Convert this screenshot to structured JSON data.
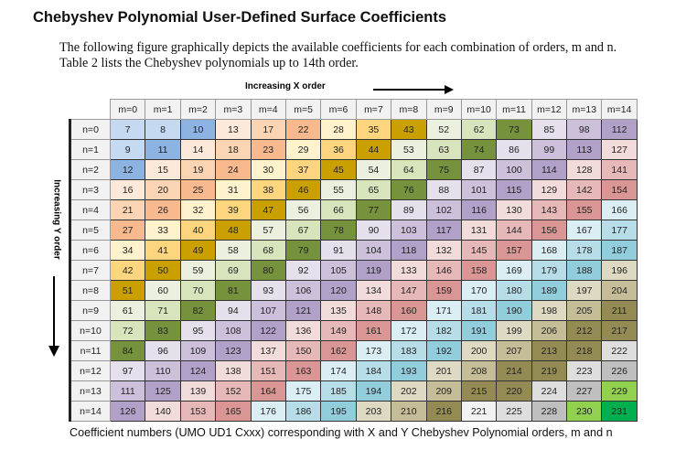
{
  "title": "Chebyshev Polynomial User-Defined Surface Coefficients",
  "paragraph": [
    "The following figure graphically depicts the available coefficients for each combination of orders, m and n.",
    "Table 2 lists the Chebyshev polynomials up to 14th order."
  ],
  "x_axis_label": "Increasing X order",
  "y_axis_label": "Increasing Y order",
  "columns": [
    "m=0",
    "m=1",
    "m=2",
    "m=3",
    "m=4",
    "m=5",
    "m=6",
    "m=7",
    "m=8",
    "m=9",
    "m=10",
    "m=11",
    "m=12",
    "m=13",
    "m=14"
  ],
  "rows": [
    {
      "label": "n=0",
      "values": [
        7,
        8,
        10,
        13,
        17,
        22,
        28,
        35,
        43,
        52,
        62,
        73,
        85,
        98,
        112
      ]
    },
    {
      "label": "n=1",
      "values": [
        9,
        11,
        14,
        18,
        23,
        29,
        36,
        44,
        53,
        63,
        74,
        86,
        99,
        113,
        127
      ]
    },
    {
      "label": "n=2",
      "values": [
        12,
        15,
        19,
        24,
        30,
        37,
        45,
        54,
        64,
        75,
        87,
        100,
        114,
        128,
        141
      ]
    },
    {
      "label": "n=3",
      "values": [
        16,
        20,
        25,
        31,
        38,
        46,
        55,
        65,
        76,
        88,
        101,
        115,
        129,
        142,
        154
      ]
    },
    {
      "label": "n=4",
      "values": [
        21,
        26,
        32,
        39,
        47,
        56,
        66,
        77,
        89,
        102,
        116,
        130,
        143,
        155,
        166
      ]
    },
    {
      "label": "n=5",
      "values": [
        27,
        33,
        40,
        48,
        57,
        67,
        78,
        90,
        103,
        117,
        131,
        144,
        156,
        167,
        177
      ]
    },
    {
      "label": "n=6",
      "values": [
        34,
        41,
        49,
        58,
        68,
        79,
        91,
        104,
        118,
        132,
        145,
        157,
        168,
        178,
        187
      ]
    },
    {
      "label": "n=7",
      "values": [
        42,
        50,
        59,
        69,
        80,
        92,
        105,
        119,
        133,
        146,
        158,
        169,
        179,
        188,
        196
      ]
    },
    {
      "label": "n=8",
      "values": [
        51,
        60,
        70,
        81,
        93,
        106,
        120,
        134,
        147,
        159,
        170,
        180,
        189,
        197,
        204
      ]
    },
    {
      "label": "n=9",
      "values": [
        61,
        71,
        82,
        94,
        107,
        121,
        135,
        148,
        160,
        171,
        181,
        190,
        198,
        205,
        211
      ]
    },
    {
      "label": "n=10",
      "values": [
        72,
        83,
        95,
        108,
        122,
        136,
        149,
        161,
        172,
        182,
        191,
        199,
        206,
        212,
        217
      ]
    },
    {
      "label": "n=11",
      "values": [
        84,
        96,
        109,
        123,
        137,
        150,
        162,
        173,
        183,
        192,
        200,
        207,
        213,
        218,
        222
      ]
    },
    {
      "label": "n=12",
      "values": [
        97,
        110,
        124,
        138,
        151,
        163,
        174,
        184,
        193,
        201,
        208,
        214,
        219,
        223,
        226
      ]
    },
    {
      "label": "n=13",
      "values": [
        111,
        125,
        139,
        152,
        164,
        175,
        185,
        194,
        202,
        209,
        215,
        220,
        224,
        227,
        229
      ]
    },
    {
      "label": "n=14",
      "values": [
        126,
        140,
        153,
        165,
        176,
        186,
        195,
        203,
        210,
        216,
        221,
        225,
        228,
        230,
        231
      ]
    }
  ],
  "diagonal_colors": [
    "#c5d9f1",
    "#c5d9f1",
    "#8db3e2",
    "#fde9d9",
    "#fbd4b4",
    "#f9b98e",
    "#fff2cc",
    "#fcd57e",
    "#c9a000",
    "#ebf1de",
    "#d7e4bc",
    "#76923c",
    "#e5e0ec",
    "#ccc0da",
    "#b1a0c7",
    "#f2dcdb",
    "#e6b9b8",
    "#da9694",
    "#daeef3",
    "#b7dde8",
    "#92cddc",
    "#ddd9c3",
    "#c4bd97",
    "#948a54",
    "#948a54",
    "#dedede",
    "#bfbfbf",
    "#92d050",
    "#00b050"
  ],
  "color_overrides": {
    "221": "#f2f2f2"
  },
  "caption": "Coefficient numbers (UMO UD1 Cxxx) corresponding with X and Y Chebyshev Polynomial orders, m and n"
}
